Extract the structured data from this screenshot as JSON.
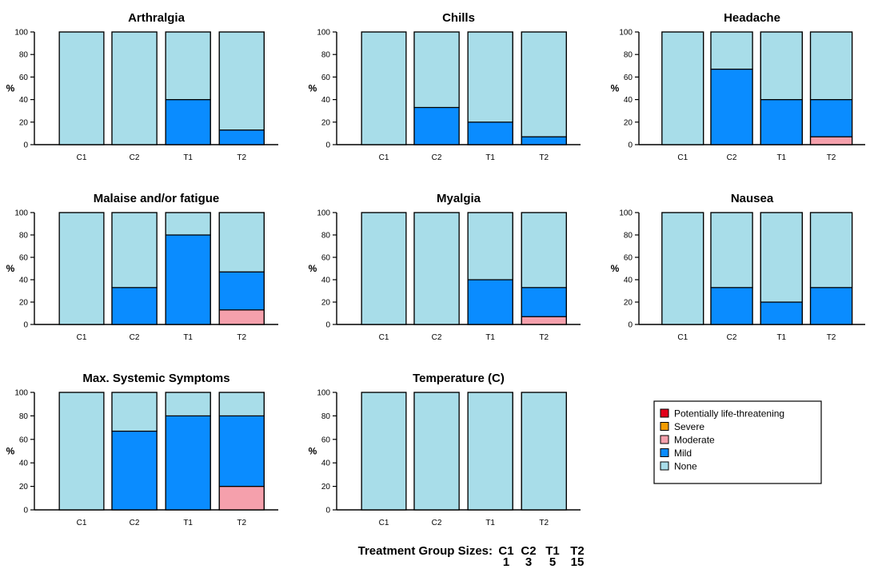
{
  "chart_data": [
    {
      "type": "bar",
      "stacked": true,
      "title": "Arthralgia",
      "ylabel": "%",
      "ylim": [
        0,
        100
      ],
      "yticks": [
        0,
        20,
        40,
        60,
        80,
        100
      ],
      "categories": [
        "C1",
        "C2",
        "T1",
        "T2"
      ],
      "series": [
        {
          "name": "Potentially life-threatening",
          "values": [
            0,
            0,
            0,
            0
          ]
        },
        {
          "name": "Severe",
          "values": [
            0,
            0,
            0,
            0
          ]
        },
        {
          "name": "Moderate",
          "values": [
            0,
            0,
            0,
            0
          ]
        },
        {
          "name": "Mild",
          "values": [
            0,
            0,
            40,
            13
          ]
        },
        {
          "name": "None",
          "values": [
            100,
            100,
            60,
            87
          ]
        }
      ]
    },
    {
      "type": "bar",
      "stacked": true,
      "title": "Chills",
      "ylabel": "%",
      "ylim": [
        0,
        100
      ],
      "yticks": [
        0,
        20,
        40,
        60,
        80,
        100
      ],
      "categories": [
        "C1",
        "C2",
        "T1",
        "T2"
      ],
      "series": [
        {
          "name": "Potentially life-threatening",
          "values": [
            0,
            0,
            0,
            0
          ]
        },
        {
          "name": "Severe",
          "values": [
            0,
            0,
            0,
            0
          ]
        },
        {
          "name": "Moderate",
          "values": [
            0,
            0,
            0,
            0
          ]
        },
        {
          "name": "Mild",
          "values": [
            0,
            33,
            20,
            7
          ]
        },
        {
          "name": "None",
          "values": [
            100,
            67,
            80,
            93
          ]
        }
      ]
    },
    {
      "type": "bar",
      "stacked": true,
      "title": "Headache",
      "ylabel": "%",
      "ylim": [
        0,
        100
      ],
      "yticks": [
        0,
        20,
        40,
        60,
        80,
        100
      ],
      "categories": [
        "C1",
        "C2",
        "T1",
        "T2"
      ],
      "series": [
        {
          "name": "Potentially life-threatening",
          "values": [
            0,
            0,
            0,
            0
          ]
        },
        {
          "name": "Severe",
          "values": [
            0,
            0,
            0,
            0
          ]
        },
        {
          "name": "Moderate",
          "values": [
            0,
            0,
            0,
            7
          ]
        },
        {
          "name": "Mild",
          "values": [
            0,
            67,
            40,
            33
          ]
        },
        {
          "name": "None",
          "values": [
            100,
            33,
            60,
            60
          ]
        }
      ]
    },
    {
      "type": "bar",
      "stacked": true,
      "title": "Malaise and/or fatigue",
      "ylabel": "%",
      "ylim": [
        0,
        100
      ],
      "yticks": [
        0,
        20,
        40,
        60,
        80,
        100
      ],
      "categories": [
        "C1",
        "C2",
        "T1",
        "T2"
      ],
      "series": [
        {
          "name": "Potentially life-threatening",
          "values": [
            0,
            0,
            0,
            0
          ]
        },
        {
          "name": "Severe",
          "values": [
            0,
            0,
            0,
            0
          ]
        },
        {
          "name": "Moderate",
          "values": [
            0,
            0,
            0,
            13
          ]
        },
        {
          "name": "Mild",
          "values": [
            0,
            33,
            80,
            34
          ]
        },
        {
          "name": "None",
          "values": [
            100,
            67,
            20,
            53
          ]
        }
      ]
    },
    {
      "type": "bar",
      "stacked": true,
      "title": "Myalgia",
      "ylabel": "%",
      "ylim": [
        0,
        100
      ],
      "yticks": [
        0,
        20,
        40,
        60,
        80,
        100
      ],
      "categories": [
        "C1",
        "C2",
        "T1",
        "T2"
      ],
      "series": [
        {
          "name": "Potentially life-threatening",
          "values": [
            0,
            0,
            0,
            0
          ]
        },
        {
          "name": "Severe",
          "values": [
            0,
            0,
            0,
            0
          ]
        },
        {
          "name": "Moderate",
          "values": [
            0,
            0,
            0,
            7
          ]
        },
        {
          "name": "Mild",
          "values": [
            0,
            0,
            40,
            26
          ]
        },
        {
          "name": "None",
          "values": [
            100,
            100,
            60,
            67
          ]
        }
      ]
    },
    {
      "type": "bar",
      "stacked": true,
      "title": "Nausea",
      "ylabel": "%",
      "ylim": [
        0,
        100
      ],
      "yticks": [
        0,
        20,
        40,
        60,
        80,
        100
      ],
      "categories": [
        "C1",
        "C2",
        "T1",
        "T2"
      ],
      "series": [
        {
          "name": "Potentially life-threatening",
          "values": [
            0,
            0,
            0,
            0
          ]
        },
        {
          "name": "Severe",
          "values": [
            0,
            0,
            0,
            0
          ]
        },
        {
          "name": "Moderate",
          "values": [
            0,
            0,
            0,
            0
          ]
        },
        {
          "name": "Mild",
          "values": [
            0,
            33,
            20,
            33
          ]
        },
        {
          "name": "None",
          "values": [
            100,
            67,
            80,
            67
          ]
        }
      ]
    },
    {
      "type": "bar",
      "stacked": true,
      "title": "Max. Systemic Symptoms",
      "ylabel": "%",
      "ylim": [
        0,
        100
      ],
      "yticks": [
        0,
        20,
        40,
        60,
        80,
        100
      ],
      "categories": [
        "C1",
        "C2",
        "T1",
        "T2"
      ],
      "series": [
        {
          "name": "Potentially life-threatening",
          "values": [
            0,
            0,
            0,
            0
          ]
        },
        {
          "name": "Severe",
          "values": [
            0,
            0,
            0,
            0
          ]
        },
        {
          "name": "Moderate",
          "values": [
            0,
            0,
            0,
            20
          ]
        },
        {
          "name": "Mild",
          "values": [
            0,
            67,
            80,
            60
          ]
        },
        {
          "name": "None",
          "values": [
            100,
            33,
            20,
            20
          ]
        }
      ]
    },
    {
      "type": "bar",
      "stacked": true,
      "title": "Temperature (C)",
      "ylabel": "%",
      "ylim": [
        0,
        100
      ],
      "yticks": [
        0,
        20,
        40,
        60,
        80,
        100
      ],
      "categories": [
        "C1",
        "C2",
        "T1",
        "T2"
      ],
      "series": [
        {
          "name": "Potentially life-threatening",
          "values": [
            0,
            0,
            0,
            0
          ]
        },
        {
          "name": "Severe",
          "values": [
            0,
            0,
            0,
            0
          ]
        },
        {
          "name": "Moderate",
          "values": [
            0,
            0,
            0,
            0
          ]
        },
        {
          "name": "Mild",
          "values": [
            0,
            0,
            0,
            0
          ]
        },
        {
          "name": "None",
          "values": [
            100,
            100,
            100,
            100
          ]
        }
      ]
    }
  ],
  "legend": {
    "placement": "bottom-right",
    "entries": [
      {
        "label": "Potentially life-threatening",
        "color": "#e3001b"
      },
      {
        "label": "Severe",
        "color": "#f39c00"
      },
      {
        "label": "Moderate",
        "color": "#f5a0ac"
      },
      {
        "label": "Mild",
        "color": "#0a8cff"
      },
      {
        "label": "None",
        "color": "#a8dde9"
      }
    ]
  },
  "group_sizes": {
    "label": "Treatment Group Sizes:",
    "groups": [
      {
        "name": "C1",
        "n": "1"
      },
      {
        "name": "C2",
        "n": "3"
      },
      {
        "name": "T1",
        "n": "5"
      },
      {
        "name": "T2",
        "n": "15"
      }
    ]
  }
}
